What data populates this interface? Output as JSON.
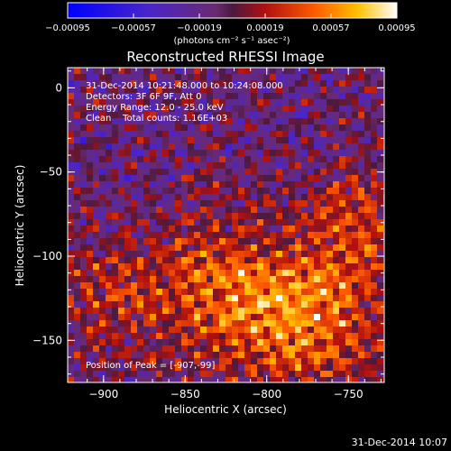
{
  "chart_data": {
    "type": "heatmap",
    "title": "Reconstructed RHESSI Image",
    "xlabel": "Heliocentric X (arcsec)",
    "ylabel": "Heliocentric Y (arcsec)",
    "xlim": [
      -922,
      -728
    ],
    "ylim": [
      -175,
      12
    ],
    "xticks": [
      -900,
      -850,
      -800,
      -750
    ],
    "xtick_labels": [
      "−900",
      "−850",
      "−800",
      "−750"
    ],
    "yticks": [
      0,
      -50,
      -100,
      -150
    ],
    "ytick_labels": [
      "0",
      "−50",
      "−100",
      "−150"
    ],
    "colorbar": {
      "ticks": [
        -0.00095,
        -0.00057,
        -0.00019,
        0.00019,
        0.00057,
        0.00095
      ],
      "tick_labels": [
        "−0.00095",
        "−0.00057",
        "−0.00019",
        "0.00019",
        "0.00057",
        "0.00095"
      ],
      "units": "(photons cm⁻² s⁻¹ asec⁻²)",
      "range": [
        -0.00095,
        0.00095
      ]
    },
    "annotations": [
      "31-Dec-2014 10:21:48.000 to 10:24:08.000",
      "Detectors: 3F 6F 9F, Att 0",
      "Energy Range: 12.0 - 25.0 keV",
      "Clean    Total counts: 1.16E+03",
      "Position of Peak = [-907,-99]"
    ],
    "peak_position": [
      -907,
      -99
    ],
    "grid": false
  },
  "footer_timestamp": "31-Dec-2014 10:07"
}
